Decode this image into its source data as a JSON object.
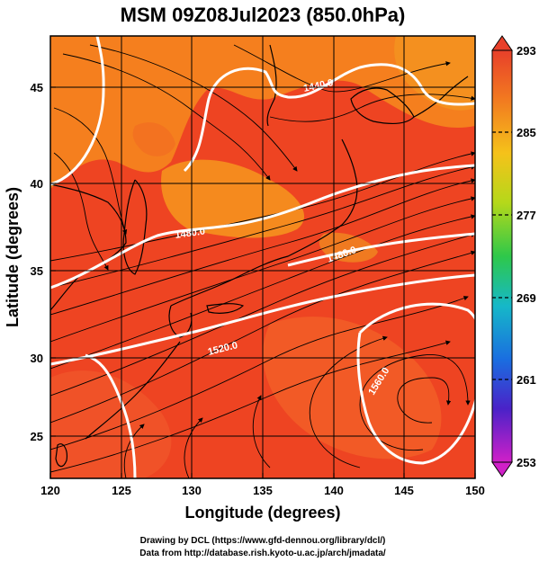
{
  "title": "MSM 09Z08Jul2023 (850.0hPa)",
  "x_axis": {
    "label": "Longitude (degrees)",
    "ticks": [
      "120",
      "125",
      "130",
      "135",
      "140",
      "145",
      "150"
    ]
  },
  "y_axis": {
    "label": "Latitude  (degrees)",
    "ticks": [
      "25",
      "30",
      "35",
      "40",
      "45"
    ]
  },
  "colorbar": {
    "ticks": [
      "293",
      "285",
      "277",
      "269",
      "261",
      "253"
    ]
  },
  "contour_labels": [
    "1440.0",
    "1480.0",
    "1480.0",
    "1520.0",
    "1560.0"
  ],
  "credits": {
    "line1": "Drawing by DCL (https://www.gfd-dennou.org/library/dcl/)",
    "line2": "Data from http://database.rish.kyoto-u.ac.jp/arch/jmadata/"
  },
  "colors": {
    "field_warm": "#ee4422",
    "field_orange": "#f57f1e",
    "contour": "#ffffff",
    "streamline": "#000000"
  },
  "chart_data": {
    "type": "heatmap",
    "title": "MSM 09Z08Jul2023 (850.0hPa)",
    "xlabel": "Longitude (degrees)",
    "ylabel": "Latitude  (degrees)",
    "xlim": [
      120,
      150
    ],
    "ylim": [
      22.4,
      47.6
    ],
    "colorbar_range": [
      253,
      293
    ],
    "colorbar_ticks": [
      293,
      285,
      277,
      269,
      261,
      253
    ],
    "contour_levels": [
      1440,
      1480,
      1520,
      1560
    ],
    "grid": true
  }
}
